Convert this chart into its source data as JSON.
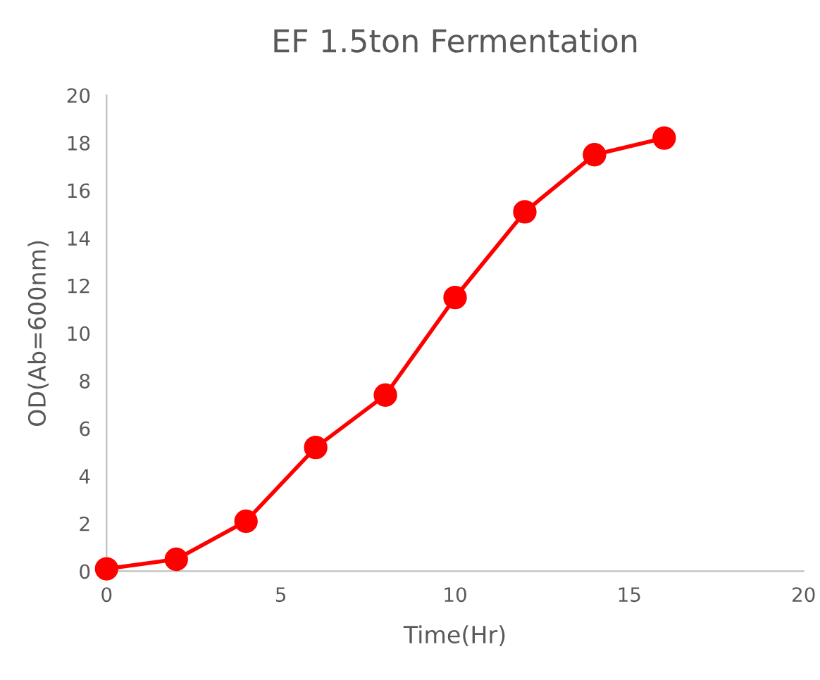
{
  "chart_data": {
    "type": "line",
    "title": "EF 1.5ton Fermentation",
    "xlabel": "Time(Hr)",
    "ylabel": "OD(Ab=600nm)",
    "x": [
      0,
      2,
      4,
      6,
      8,
      10,
      12,
      14,
      16
    ],
    "series": [
      {
        "color": "#ff0000",
        "values": [
          0.1,
          0.5,
          2.1,
          5.2,
          7.4,
          11.5,
          15.1,
          17.5,
          18.2
        ]
      }
    ],
    "xlim": [
      0,
      20
    ],
    "xticks": [
      0,
      5,
      10,
      15,
      20
    ],
    "ylim": [
      0,
      20
    ],
    "yticks": [
      0,
      2,
      4,
      6,
      8,
      10,
      12,
      14,
      16,
      18,
      20
    ],
    "grid": false,
    "legend": false,
    "marker": "circle",
    "line_style": "solid"
  }
}
